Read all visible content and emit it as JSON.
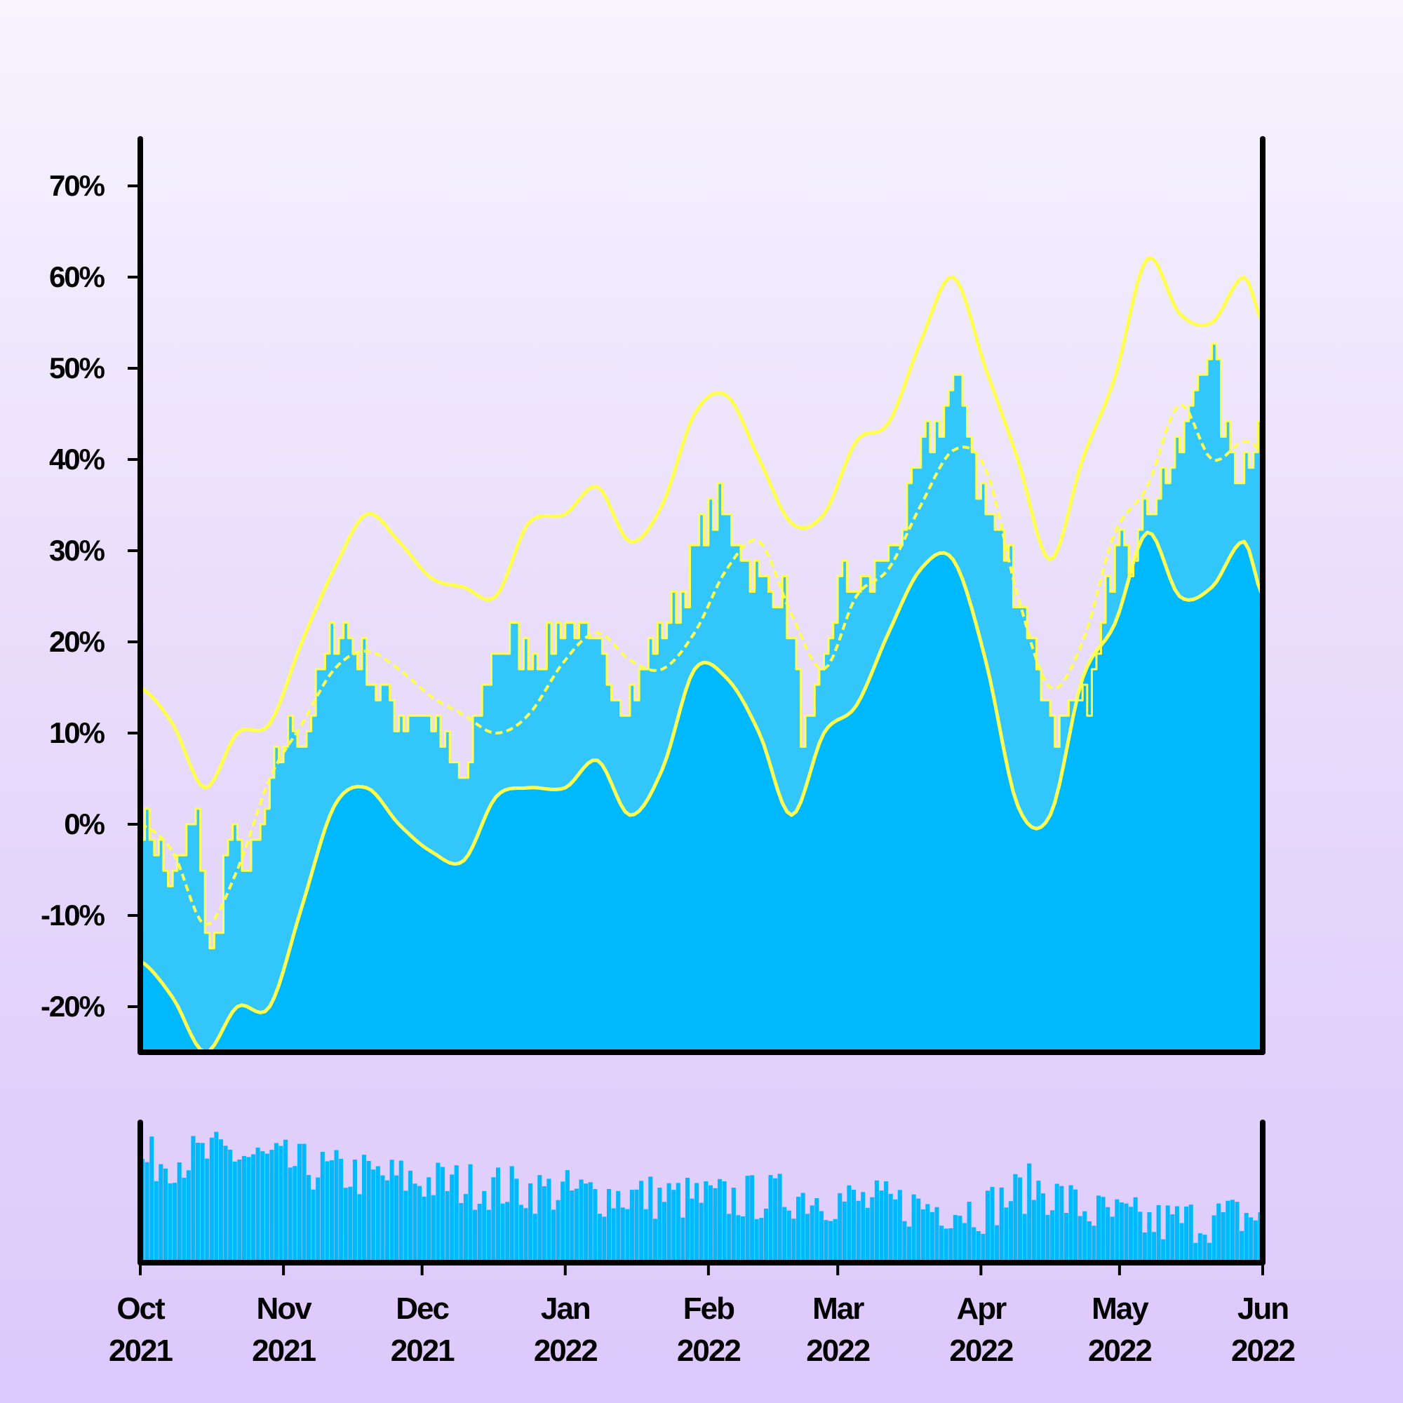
{
  "chart_data": {
    "type": "line",
    "x_axis": {
      "ticks": [
        {
          "date": "2021-10-01",
          "month": "Oct",
          "year": "2021"
        },
        {
          "date": "2021-11-01",
          "month": "Nov",
          "year": "2021"
        },
        {
          "date": "2021-12-01",
          "month": "Dec",
          "year": "2021"
        },
        {
          "date": "2022-01-01",
          "month": "Jan",
          "year": "2022"
        },
        {
          "date": "2022-02-01",
          "month": "Feb",
          "year": "2022"
        },
        {
          "date": "2022-03-01",
          "month": "Mar",
          "year": "2022"
        },
        {
          "date": "2022-04-01",
          "month": "Apr",
          "year": "2022"
        },
        {
          "date": "2022-05-01",
          "month": "May",
          "year": "2022"
        },
        {
          "date": "2022-06-01",
          "month": "Jun",
          "year": "2022"
        }
      ],
      "range": [
        "2021-10-01",
        "2022-06-01"
      ]
    },
    "y_axis": {
      "ticks": [
        "-20%",
        "-10%",
        "0%",
        "10%",
        "20%",
        "30%",
        "40%",
        "50%",
        "60%",
        "70%"
      ],
      "tick_values": [
        -20,
        -10,
        0,
        10,
        20,
        30,
        40,
        50,
        60,
        70
      ],
      "ylim": [
        -25,
        75
      ]
    },
    "grid": false,
    "colors": {
      "area_fill": "#33c6fb",
      "lower_band_fill": "#00b8fc",
      "band_lines": "#ffff4f",
      "volume_bars": "#00b8fc",
      "axis": "#000000"
    },
    "series": [
      {
        "role": "value",
        "style": "filled area, stepped",
        "x": [
          "2021-10-01",
          "2021-10-08",
          "2021-10-13",
          "2021-10-16",
          "2021-10-20",
          "2021-10-25",
          "2021-11-01",
          "2021-11-06",
          "2021-11-12",
          "2021-11-17",
          "2021-11-22",
          "2021-11-27",
          "2021-12-01",
          "2021-12-05",
          "2021-12-10",
          "2021-12-15",
          "2021-12-20",
          "2021-12-25",
          "2022-01-01",
          "2022-01-05",
          "2022-01-10",
          "2022-01-15",
          "2022-01-20",
          "2022-01-25",
          "2022-02-01",
          "2022-02-06",
          "2022-02-12",
          "2022-02-17",
          "2022-02-22",
          "2022-02-27",
          "2022-03-01",
          "2022-03-06",
          "2022-03-12",
          "2022-03-17",
          "2022-03-22",
          "2022-03-27",
          "2022-04-01",
          "2022-04-06",
          "2022-04-12",
          "2022-04-16",
          "2022-04-20",
          "2022-04-26",
          "2022-05-01",
          "2022-05-03",
          "2022-05-08",
          "2022-05-14",
          "2022-05-20",
          "2022-05-24",
          "2022-05-29",
          "2022-06-01"
        ],
        "values": [
          1,
          -6,
          0,
          -15,
          -2,
          -4,
          9,
          11,
          21,
          19,
          14,
          12,
          12,
          9,
          5,
          17,
          20,
          19,
          22,
          20,
          16,
          14,
          20,
          24,
          34,
          32,
          26,
          25,
          10,
          20,
          26,
          26,
          30,
          37,
          44,
          47,
          36,
          30,
          20,
          12,
          11,
          18,
          34,
          30,
          36,
          41,
          53,
          42,
          40,
          48
        ]
      },
      {
        "role": "moving average",
        "style": "dashed line",
        "x": [
          "2021-10-01",
          "2021-10-08",
          "2021-10-15",
          "2021-10-22",
          "2021-10-29",
          "2021-11-05",
          "2021-11-12",
          "2021-11-19",
          "2021-11-26",
          "2021-12-03",
          "2021-12-10",
          "2021-12-17",
          "2021-12-24",
          "2022-01-01",
          "2022-01-08",
          "2022-01-15",
          "2022-01-22",
          "2022-01-29",
          "2022-02-05",
          "2022-02-12",
          "2022-02-19",
          "2022-02-26",
          "2022-03-05",
          "2022-03-12",
          "2022-03-19",
          "2022-03-26",
          "2022-04-02",
          "2022-04-09",
          "2022-04-16",
          "2022-04-23",
          "2022-04-30",
          "2022-05-07",
          "2022-05-14",
          "2022-05-21",
          "2022-05-28",
          "2022-06-01"
        ],
        "values": [
          0,
          -3,
          -11,
          -5,
          5,
          11,
          17,
          19,
          17,
          14,
          12,
          10,
          12,
          18,
          21,
          18,
          17,
          21,
          28,
          31,
          23,
          17,
          25,
          28,
          35,
          41,
          39,
          25,
          15,
          20,
          32,
          37,
          46,
          40,
          42,
          41
        ]
      },
      {
        "role": "upper band",
        "style": "line",
        "x": [
          "2021-10-01",
          "2021-10-08",
          "2021-10-15",
          "2021-10-22",
          "2021-10-29",
          "2021-11-05",
          "2021-11-12",
          "2021-11-19",
          "2021-11-26",
          "2021-12-03",
          "2021-12-10",
          "2021-12-17",
          "2021-12-24",
          "2022-01-01",
          "2022-01-08",
          "2022-01-15",
          "2022-01-22",
          "2022-01-29",
          "2022-02-05",
          "2022-02-12",
          "2022-02-19",
          "2022-02-26",
          "2022-03-05",
          "2022-03-12",
          "2022-03-19",
          "2022-03-26",
          "2022-04-02",
          "2022-04-09",
          "2022-04-16",
          "2022-04-23",
          "2022-04-30",
          "2022-05-07",
          "2022-05-14",
          "2022-05-21",
          "2022-05-28",
          "2022-06-01"
        ],
        "values": [
          15,
          11,
          4,
          10,
          11,
          20,
          28,
          34,
          31,
          27,
          26,
          25,
          33,
          34,
          37,
          31,
          35,
          45,
          47,
          40,
          33,
          34,
          42,
          44,
          53,
          60,
          50,
          40,
          29,
          40,
          49,
          62,
          56,
          55,
          60,
          55
        ]
      },
      {
        "role": "lower band",
        "style": "line",
        "x": [
          "2021-10-01",
          "2021-10-08",
          "2021-10-15",
          "2021-10-22",
          "2021-10-29",
          "2021-11-05",
          "2021-11-12",
          "2021-11-19",
          "2021-11-26",
          "2021-12-03",
          "2021-12-10",
          "2021-12-17",
          "2021-12-24",
          "2022-01-01",
          "2022-01-08",
          "2022-01-15",
          "2022-01-22",
          "2022-01-29",
          "2022-02-05",
          "2022-02-12",
          "2022-02-19",
          "2022-02-26",
          "2022-03-05",
          "2022-03-12",
          "2022-03-19",
          "2022-03-26",
          "2022-04-02",
          "2022-04-09",
          "2022-04-16",
          "2022-04-23",
          "2022-04-30",
          "2022-05-07",
          "2022-05-14",
          "2022-05-21",
          "2022-05-28",
          "2022-06-01"
        ],
        "values": [
          -15,
          -19,
          -25,
          -20,
          -20,
          -9,
          2,
          4,
          0,
          -3,
          -4,
          3,
          4,
          4,
          7,
          1,
          6,
          17,
          16,
          10,
          1,
          10,
          13,
          21,
          28,
          29,
          18,
          2,
          1,
          16,
          22,
          32,
          25,
          26,
          31,
          25
        ]
      }
    ],
    "volume": {
      "type": "bar",
      "note": "relative bar heights (0-1), unlabeled axis",
      "x_range": [
        "2021-10-01",
        "2022-06-01"
      ],
      "profile_x": [
        "2021-10-01",
        "2021-10-20",
        "2021-11-10",
        "2021-12-01",
        "2022-01-01",
        "2022-02-01",
        "2022-02-20",
        "2022-03-10",
        "2022-04-01",
        "2022-04-12",
        "2022-04-25",
        "2022-05-08",
        "2022-05-25",
        "2022-06-01"
      ],
      "profile_values": [
        0.72,
        0.78,
        0.65,
        0.58,
        0.5,
        0.45,
        0.48,
        0.42,
        0.38,
        0.55,
        0.35,
        0.28,
        0.32,
        0.35
      ]
    }
  }
}
